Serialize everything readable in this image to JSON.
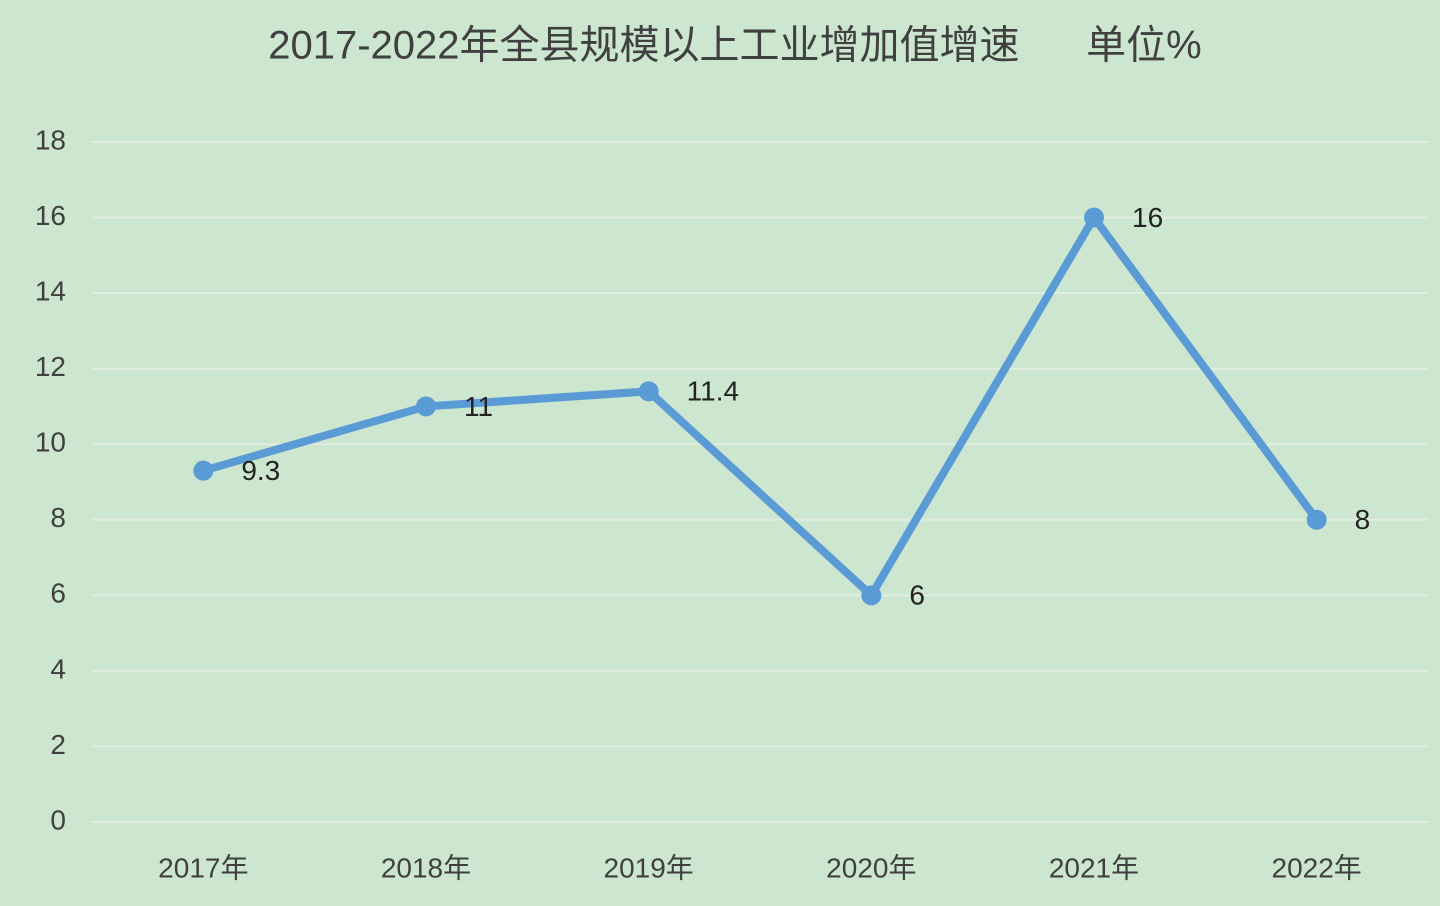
{
  "chart_data": {
    "type": "line",
    "title": "2017-2022年全县规模以上工业增加值增速      单位%",
    "categories": [
      "2017年",
      "2018年",
      "2019年",
      "2020年",
      "2021年",
      "2022年"
    ],
    "values": [
      9.3,
      11,
      11.4,
      6,
      16,
      8
    ],
    "color": "#5b9bd5",
    "ylim": [
      0,
      18
    ],
    "yticks": [
      0,
      2,
      4,
      6,
      8,
      10,
      12,
      14,
      16,
      18
    ],
    "grid": true
  }
}
